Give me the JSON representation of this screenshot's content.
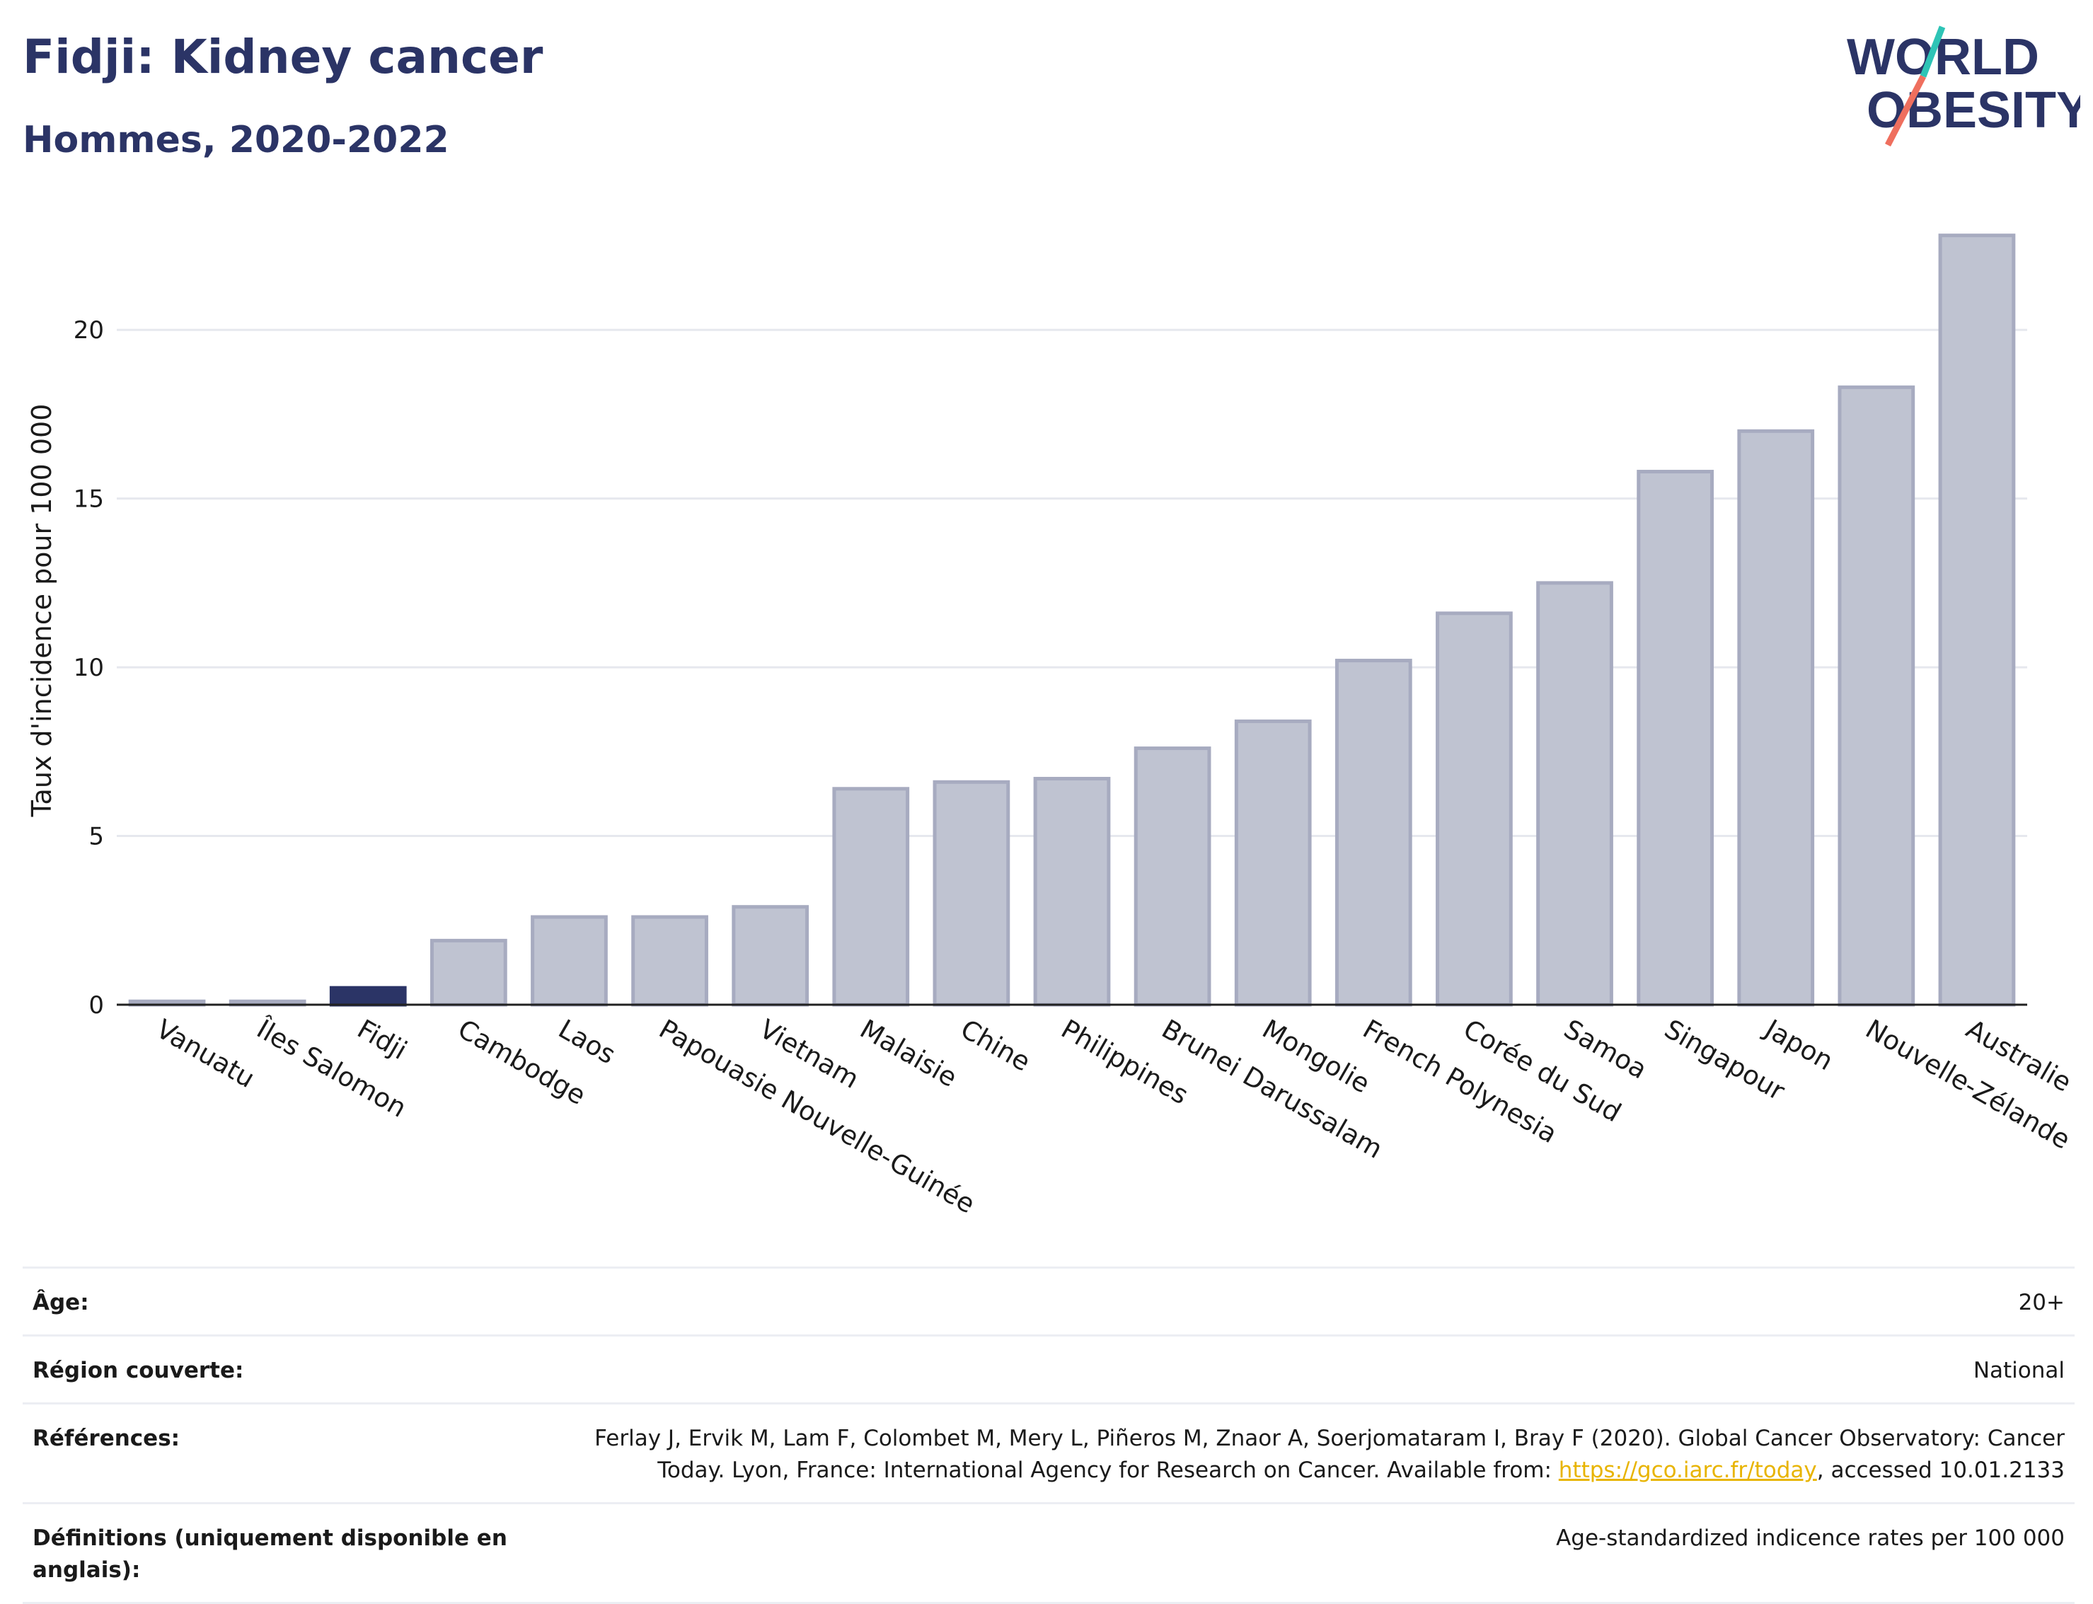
{
  "header": {
    "title": "Fidji: Kidney cancer",
    "subtitle": "Hommes, 2020-2022"
  },
  "logo": {
    "line1": "WORLD",
    "line2": "OBESITY",
    "accent_colors": [
      "#2ec4b6",
      "#ef6f5e"
    ]
  },
  "colors": {
    "highlight_bar": "#2b3466",
    "other_bar": "#bfc3d1",
    "other_bar_border": "#a7abc0",
    "text_dark": "#2b3466"
  },
  "chart_data": {
    "type": "bar",
    "title": "Fidji: Kidney cancer",
    "subtitle": "Hommes, 2020-2022",
    "xlabel": "",
    "ylabel": "Taux d'incidence pour 100 000",
    "ylim": [
      0,
      23.8
    ],
    "yticks": [
      0,
      5,
      10,
      15,
      20
    ],
    "grid": true,
    "highlight": "Fidji",
    "categories": [
      "Vanuatu",
      "Îles Salomon",
      "Fidji",
      "Cambodge",
      "Laos",
      "Papouasie Nouvelle-Guinée",
      "Vietnam",
      "Malaisie",
      "Chine",
      "Philippines",
      "Brunei Darussalam",
      "Mongolie",
      "French Polynesia",
      "Corée du Sud",
      "Samoa",
      "Singapour",
      "Japon",
      "Nouvelle-Zélande",
      "Australie"
    ],
    "values": [
      0.1,
      0.1,
      0.5,
      1.9,
      2.6,
      2.6,
      2.9,
      6.4,
      6.6,
      6.7,
      7.6,
      8.4,
      10.2,
      11.6,
      12.5,
      15.8,
      17.0,
      18.3,
      22.8
    ]
  },
  "info_table": {
    "rows": [
      {
        "label": "Âge:",
        "value": "20+"
      },
      {
        "label": "Région couverte:",
        "value": "National"
      },
      {
        "label": "Références:",
        "value_line1": "Ferlay J, Ervik M, Lam F, Colombet M, Mery L, Piñeros M, Znaor A, Soerjomataram I, Bray F (2020). Global Cancer Observatory: Cancer",
        "value_line2_pre": "Today. Lyon, France: International Agency for Research on Cancer. Available from: ",
        "link": "https://gco.iarc.fr/today",
        "value_line2_post": ", accessed 10.01.2133"
      },
      {
        "label": "Définitions (uniquement disponible en anglais):",
        "value": "Age-standardized indicence rates per 100 000"
      }
    ]
  }
}
